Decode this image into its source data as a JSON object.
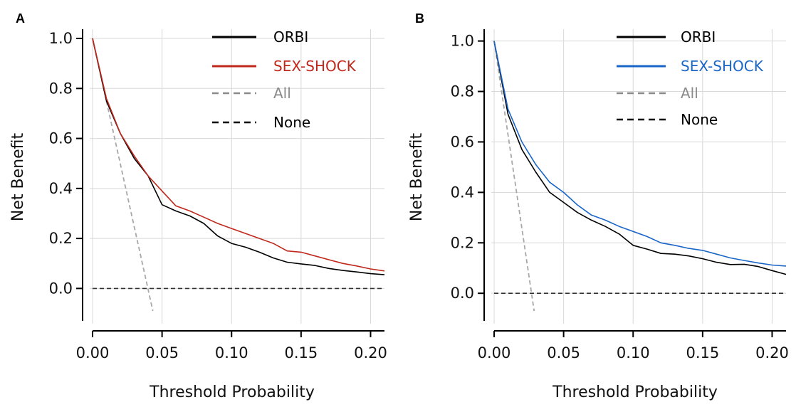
{
  "colors": {
    "orbi": "#000000",
    "all": "#a8a8a8",
    "none": "#333333",
    "panel_a_model2": "#c0281c",
    "panel_b_model2": "#1a66c8"
  },
  "chart_data": [
    {
      "type": "line",
      "panel": "A",
      "xlabel": "Threshold Probability",
      "ylabel": "Net Benefit",
      "xlim": [
        0,
        0.21
      ],
      "ylim": [
        -0.09,
        1.02
      ],
      "xticks": [
        "0.00",
        "0.05",
        "0.10",
        "0.15",
        "0.20"
      ],
      "yticks": [
        "0.0",
        "0.2",
        "0.4",
        "0.6",
        "0.8",
        "1.0"
      ],
      "grid": true,
      "legend_placement": "top-right",
      "legend": [
        "ORBI",
        "SEX-SHOCK",
        "All",
        "None"
      ],
      "series": [
        {
          "name": "ORBI",
          "style": "solid",
          "x": [
            0,
            0.01,
            0.02,
            0.03,
            0.04,
            0.05,
            0.06,
            0.07,
            0.08,
            0.09,
            0.1,
            0.11,
            0.12,
            0.13,
            0.14,
            0.15,
            0.16,
            0.17,
            0.18,
            0.19,
            0.2,
            0.21
          ],
          "y": [
            1.0,
            0.75,
            0.62,
            0.52,
            0.45,
            0.335,
            0.31,
            0.29,
            0.26,
            0.21,
            0.18,
            0.165,
            0.145,
            0.122,
            0.105,
            0.098,
            0.092,
            0.08,
            0.072,
            0.066,
            0.059,
            0.055
          ]
        },
        {
          "name": "SEX-SHOCK",
          "style": "solid",
          "x": [
            0,
            0.01,
            0.02,
            0.03,
            0.04,
            0.05,
            0.06,
            0.07,
            0.08,
            0.09,
            0.1,
            0.11,
            0.12,
            0.13,
            0.14,
            0.15,
            0.16,
            0.17,
            0.18,
            0.19,
            0.2,
            0.21
          ],
          "y": [
            1.0,
            0.76,
            0.62,
            0.53,
            0.45,
            0.39,
            0.33,
            0.31,
            0.285,
            0.26,
            0.24,
            0.22,
            0.2,
            0.18,
            0.15,
            0.145,
            0.13,
            0.115,
            0.1,
            0.09,
            0.078,
            0.07
          ]
        },
        {
          "name": "All",
          "style": "dashed",
          "x": [
            0,
            0.0434
          ],
          "y": [
            1.0,
            -0.09
          ]
        },
        {
          "name": "None",
          "style": "dashed",
          "x": [
            0,
            0.21
          ],
          "y": [
            0,
            0
          ]
        }
      ]
    },
    {
      "type": "line",
      "panel": "B",
      "xlabel": "Threshold Probability",
      "ylabel": "Net Benefit",
      "xlim": [
        0,
        0.21
      ],
      "ylim": [
        -0.07,
        1.03
      ],
      "xticks": [
        "0.00",
        "0.05",
        "0.10",
        "0.15",
        "0.20"
      ],
      "yticks": [
        "0.0",
        "0.2",
        "0.4",
        "0.6",
        "0.8",
        "1.0"
      ],
      "grid": true,
      "legend_placement": "top-right",
      "legend": [
        "ORBI",
        "SEX-SHOCK",
        "All",
        "None"
      ],
      "series": [
        {
          "name": "ORBI",
          "style": "solid",
          "x": [
            0,
            0.01,
            0.02,
            0.03,
            0.04,
            0.05,
            0.06,
            0.07,
            0.08,
            0.09,
            0.1,
            0.11,
            0.12,
            0.13,
            0.14,
            0.15,
            0.16,
            0.17,
            0.18,
            0.19,
            0.2,
            0.21
          ],
          "y": [
            1.0,
            0.71,
            0.57,
            0.48,
            0.4,
            0.36,
            0.32,
            0.29,
            0.265,
            0.235,
            0.19,
            0.175,
            0.158,
            0.155,
            0.148,
            0.137,
            0.123,
            0.114,
            0.115,
            0.106,
            0.09,
            0.075
          ]
        },
        {
          "name": "SEX-SHOCK",
          "style": "solid",
          "x": [
            0,
            0.01,
            0.02,
            0.03,
            0.04,
            0.05,
            0.06,
            0.07,
            0.08,
            0.09,
            0.1,
            0.11,
            0.12,
            0.13,
            0.14,
            0.15,
            0.16,
            0.17,
            0.18,
            0.19,
            0.2,
            0.21
          ],
          "y": [
            1.0,
            0.73,
            0.6,
            0.51,
            0.44,
            0.4,
            0.35,
            0.31,
            0.29,
            0.265,
            0.245,
            0.225,
            0.2,
            0.19,
            0.178,
            0.17,
            0.155,
            0.14,
            0.13,
            0.12,
            0.112,
            0.108
          ]
        },
        {
          "name": "All",
          "style": "dashed",
          "x": [
            0,
            0.0288
          ],
          "y": [
            1.0,
            -0.07
          ]
        },
        {
          "name": "None",
          "style": "dashed",
          "x": [
            0,
            0.21
          ],
          "y": [
            0,
            0
          ]
        }
      ]
    }
  ]
}
